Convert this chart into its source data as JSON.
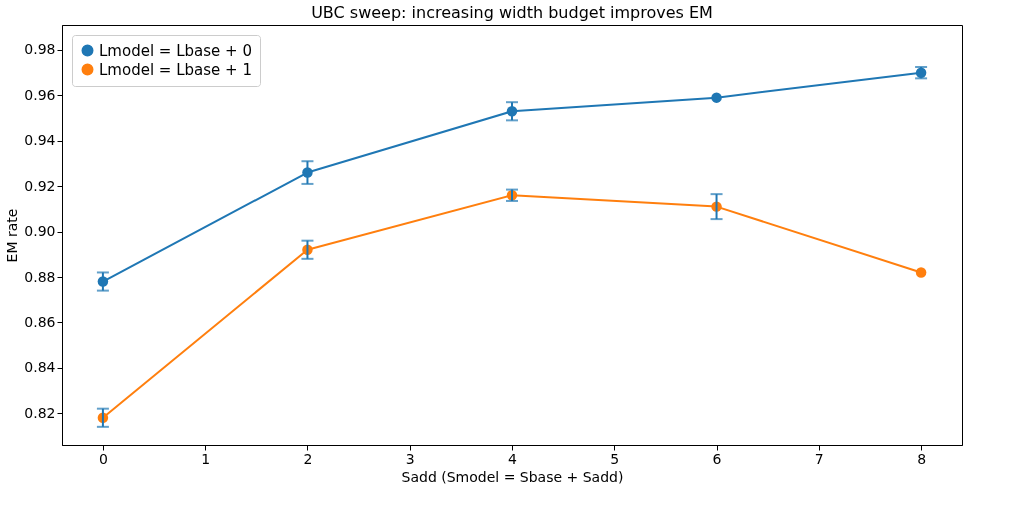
{
  "chart_data": {
    "type": "line",
    "title": "UBC sweep: increasing width budget improves EM",
    "xlabel": "Sadd  (Smodel = Sbase + Sadd)",
    "ylabel": "EM rate",
    "x": [
      0,
      2,
      4,
      6,
      8
    ],
    "series": [
      {
        "name": "Lmodel = Lbase + 0",
        "color": "#1f77b4",
        "values": [
          0.878,
          0.926,
          0.953,
          0.959,
          0.97
        ],
        "errors": [
          0.004,
          0.005,
          0.004,
          null,
          0.0025
        ]
      },
      {
        "name": "Lmodel = Lbase + 1",
        "color": "#ff7f0e",
        "values": [
          0.818,
          0.892,
          0.916,
          0.911,
          0.882
        ],
        "errors": [
          0.004,
          0.004,
          0.0025,
          0.0055,
          null
        ]
      }
    ],
    "xlim": [
      -0.4,
      8.4
    ],
    "ylim": [
      0.806,
      0.991
    ],
    "xticks": [
      0,
      1,
      2,
      3,
      4,
      5,
      6,
      7,
      8
    ],
    "yticks": [
      {
        "value": 0.82,
        "label": "0.82"
      },
      {
        "value": 0.84,
        "label": "0.84"
      },
      {
        "value": 0.86,
        "label": "0.86"
      },
      {
        "value": 0.88,
        "label": "0.88"
      },
      {
        "value": 0.9,
        "label": "0.90"
      },
      {
        "value": 0.92,
        "label": "0.92"
      },
      {
        "value": 0.94,
        "label": "0.94"
      },
      {
        "value": 0.96,
        "label": "0.96"
      },
      {
        "value": 0.98,
        "label": "0.98"
      }
    ],
    "grid": false,
    "legend": "top left",
    "marker": "circle",
    "line_style": "solid"
  }
}
